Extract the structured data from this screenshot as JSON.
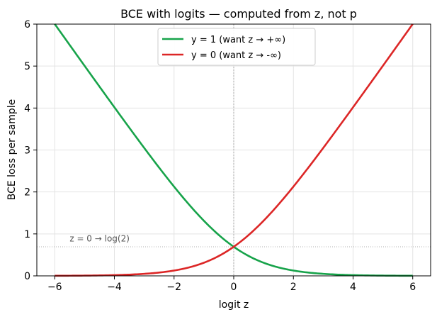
{
  "chart_data": {
    "type": "line",
    "title": "BCE with logits — computed from z, not p",
    "xlabel": "logit  z",
    "ylabel": "BCE loss per sample",
    "xlim": [
      -6.6,
      6.6
    ],
    "ylim": [
      0,
      6
    ],
    "xticks": [
      -6,
      -4,
      -2,
      0,
      2,
      4,
      6
    ],
    "xtick_labels": [
      "−6",
      "−4",
      "−2",
      "0",
      "2",
      "4",
      "6"
    ],
    "yticks": [
      0,
      1,
      2,
      3,
      4,
      5,
      6
    ],
    "ytick_labels": [
      "0",
      "1",
      "2",
      "3",
      "4",
      "5",
      "6"
    ],
    "grid": true,
    "legend_position": "top-center",
    "x": [
      -6,
      -5,
      -4,
      -3,
      -2,
      -1,
      0,
      1,
      2,
      3,
      4,
      5,
      6
    ],
    "series": [
      {
        "name": "y = 1  (want z → +∞)",
        "color": "#17a34a",
        "values": [
          6.0025,
          5.0067,
          4.0181,
          3.0486,
          2.1269,
          1.3133,
          0.6931,
          0.3133,
          0.1269,
          0.0486,
          0.0181,
          0.0067,
          0.0025
        ]
      },
      {
        "name": "y = 0  (want z → -∞)",
        "color": "#dc2626",
        "values": [
          0.0025,
          0.0067,
          0.0181,
          0.0486,
          0.1269,
          0.3133,
          0.6931,
          1.3133,
          2.1269,
          3.0486,
          4.0181,
          5.0067,
          6.0025
        ]
      }
    ],
    "reference_lines": [
      {
        "orientation": "vertical",
        "value": 0
      },
      {
        "orientation": "horizontal",
        "value": 0.6931
      }
    ],
    "annotation": {
      "text": "z = 0 → log(2)",
      "x": -5.5,
      "y": 0.72
    }
  }
}
